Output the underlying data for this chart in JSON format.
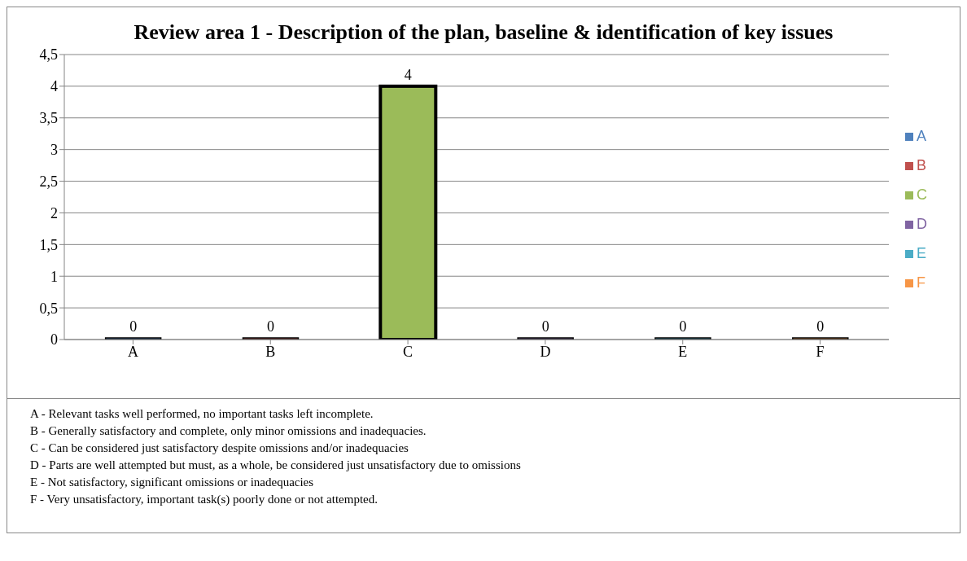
{
  "chart_data": {
    "type": "bar",
    "title": "Review area 1 - Description of the plan, baseline & identification of key issues",
    "categories": [
      "A",
      "B",
      "C",
      "D",
      "E",
      "F"
    ],
    "stacked": true,
    "series": [
      {
        "name": "A",
        "color": "#4f81bd",
        "values": [
          0,
          null,
          null,
          null,
          null,
          null
        ]
      },
      {
        "name": "B",
        "color": "#c0504d",
        "values": [
          null,
          0,
          null,
          null,
          null,
          null
        ]
      },
      {
        "name": "C",
        "color": "#9bbb59",
        "values": [
          null,
          null,
          4,
          null,
          null,
          null
        ]
      },
      {
        "name": "D",
        "color": "#8064a2",
        "values": [
          null,
          null,
          null,
          0,
          null,
          null
        ]
      },
      {
        "name": "E",
        "color": "#4bacc6",
        "values": [
          null,
          null,
          null,
          null,
          0,
          null
        ]
      },
      {
        "name": "F",
        "color": "#f79646",
        "values": [
          null,
          null,
          null,
          null,
          null,
          0
        ]
      }
    ],
    "ylim": [
      0,
      4.5
    ],
    "yticks": [
      0,
      {
        "value": 0.5,
        "label": "0,5"
      },
      1,
      {
        "value": 1.5,
        "label": "1,5"
      },
      2,
      {
        "value": 2.5,
        "label": "2,5"
      },
      3,
      {
        "value": 3.5,
        "label": "3,5"
      },
      4,
      {
        "value": 4.5,
        "label": "4,5"
      }
    ],
    "grid": "y",
    "legend": "right",
    "data_labels": true,
    "annotations": [
      "A -  Relevant tasks well performed, no important tasks left incomplete.",
      "B -  Generally satisfactory and complete, only minor omissions and inadequacies.",
      "C -  Can be considered just satisfactory despite omissions and/or inadequacies",
      "D -  Parts are well attempted but must, as a whole, be considered just unsatisfactory due to omissions",
      "E -  Not satisfactory, significant omissions or inadequacies",
      "F -  Very unsatisfactory, important task(s) poorly done or not attempted."
    ]
  }
}
